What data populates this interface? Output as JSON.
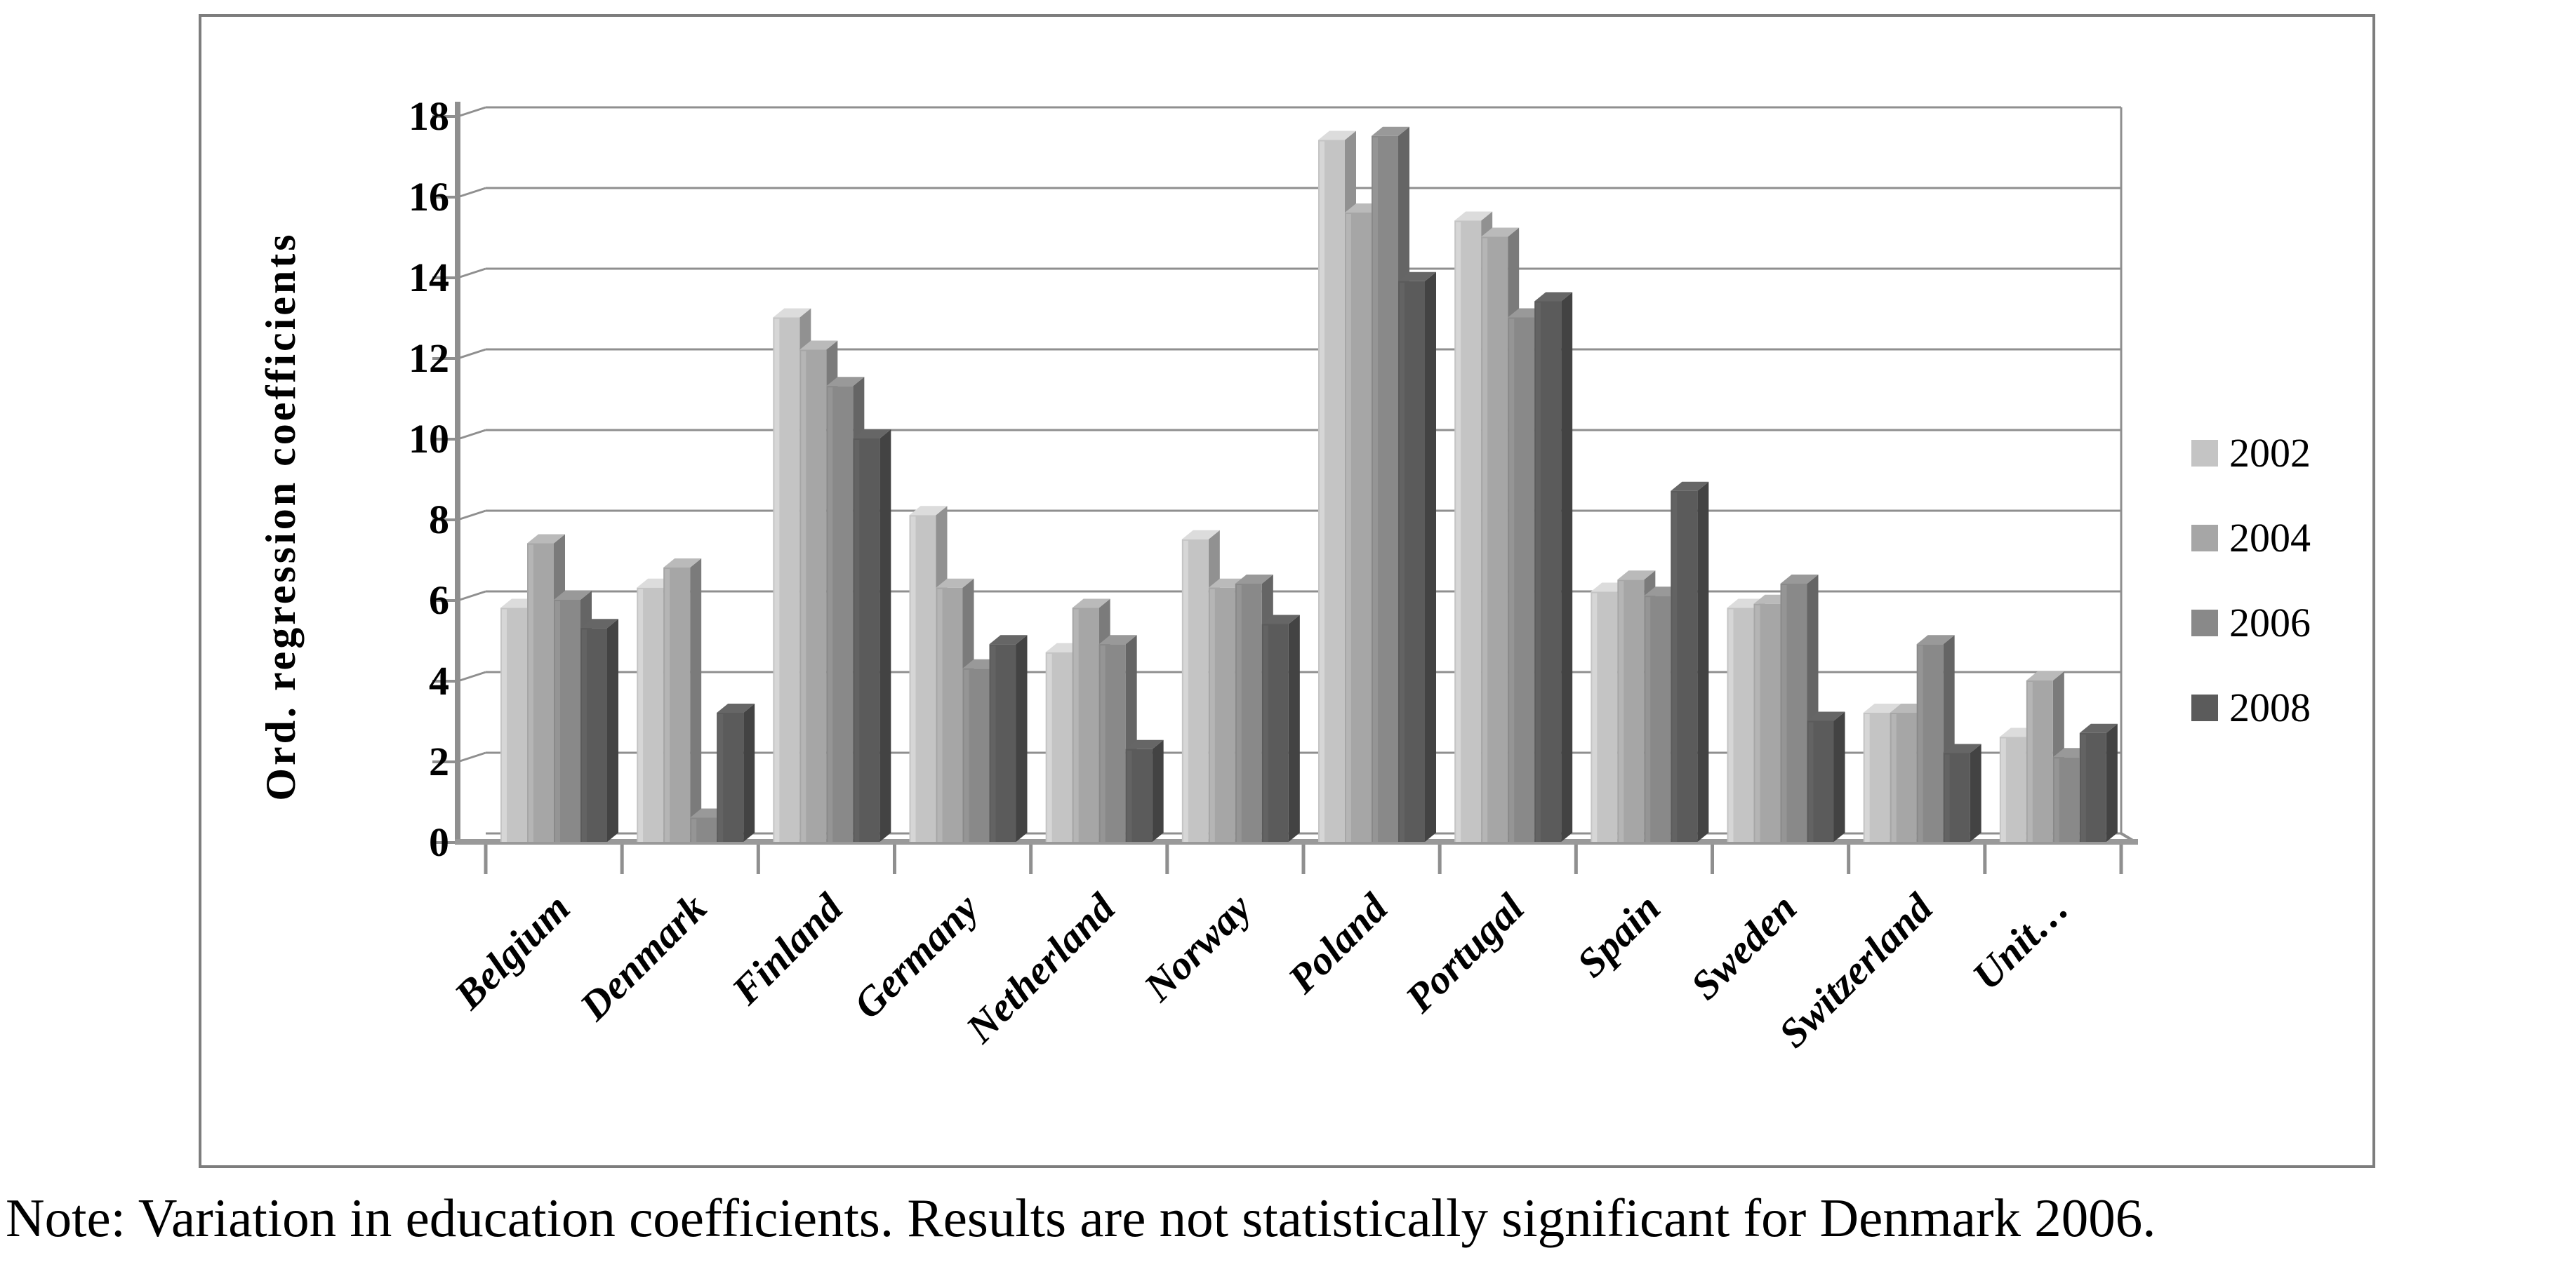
{
  "figure": {
    "ylabel": "Ord. regression coefficients",
    "note": "Note: Variation in education coefficients. Results are not statistically significant for Denmark 2006."
  },
  "chart_data": {
    "type": "bar",
    "title": "",
    "xlabel": "",
    "ylabel": "Ord. regression coefficients",
    "categories": [
      "Belgium",
      "Denmark",
      "Finland",
      "Germany",
      "Netherland",
      "Norway",
      "Poland",
      "Portugal",
      "Spain",
      "Sweden",
      "Switzerland",
      "Unit…"
    ],
    "series": [
      {
        "name": "2002",
        "color": "#c4c4c4",
        "values": [
          5.8,
          6.3,
          13.0,
          8.1,
          4.7,
          7.5,
          17.4,
          15.4,
          6.2,
          5.8,
          3.2,
          2.6
        ]
      },
      {
        "name": "2004",
        "color": "#a6a6a6",
        "values": [
          7.4,
          6.8,
          12.2,
          6.3,
          5.8,
          6.3,
          15.6,
          15.0,
          6.5,
          5.9,
          3.2,
          4.0
        ]
      },
      {
        "name": "2006",
        "color": "#898989",
        "values": [
          6.0,
          0.6,
          11.3,
          4.3,
          4.9,
          6.4,
          17.5,
          13.0,
          6.1,
          6.4,
          4.9,
          2.1
        ]
      },
      {
        "name": "2008",
        "color": "#5b5b5b",
        "values": [
          5.3,
          3.2,
          10.0,
          4.9,
          2.3,
          5.4,
          13.9,
          13.4,
          8.7,
          3.0,
          2.2,
          2.7
        ]
      }
    ],
    "ylim": [
      0,
      18
    ],
    "yticks": [
      0,
      2,
      4,
      6,
      8,
      10,
      12,
      14,
      16,
      18
    ],
    "grid": true,
    "legend_position": "right",
    "bar_style": "3d-clustered",
    "grid_color": "#8f8f8f",
    "frame_color": "#7d7d7d"
  }
}
